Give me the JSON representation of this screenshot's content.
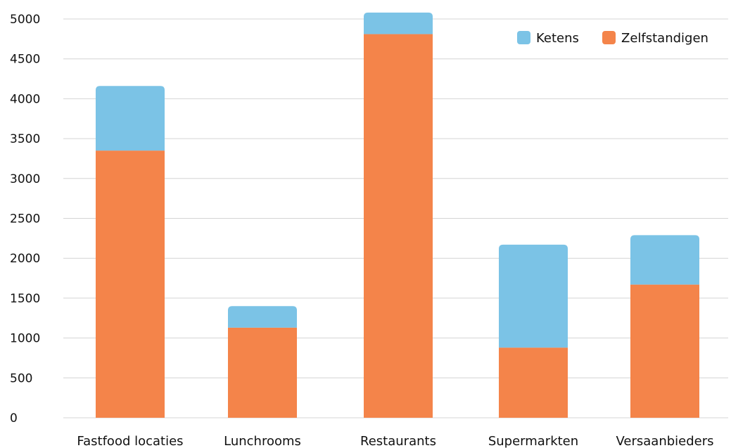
{
  "chart_data": {
    "type": "bar",
    "stacked": true,
    "categories": [
      "Fastfood locaties",
      "Lunchrooms",
      "Restaurants",
      "Supermarkten",
      "Versaanbieders"
    ],
    "series": [
      {
        "name": "Zelfstandigen",
        "color": "#F4844A",
        "values": [
          3350,
          1130,
          4810,
          880,
          1670
        ]
      },
      {
        "name": "Ketens",
        "color": "#7BC3E6",
        "values": [
          810,
          270,
          270,
          1290,
          620
        ]
      }
    ],
    "ylim": [
      0,
      5000
    ],
    "yticks": [
      0,
      500,
      1000,
      1500,
      2000,
      2500,
      3000,
      3500,
      4000,
      4500,
      5000
    ],
    "grid": true,
    "legend": {
      "placement": "top-right",
      "entries": [
        {
          "name": "Ketens",
          "color": "#7BC3E6"
        },
        {
          "name": "Zelfstandigen",
          "color": "#F4844A"
        }
      ]
    }
  }
}
